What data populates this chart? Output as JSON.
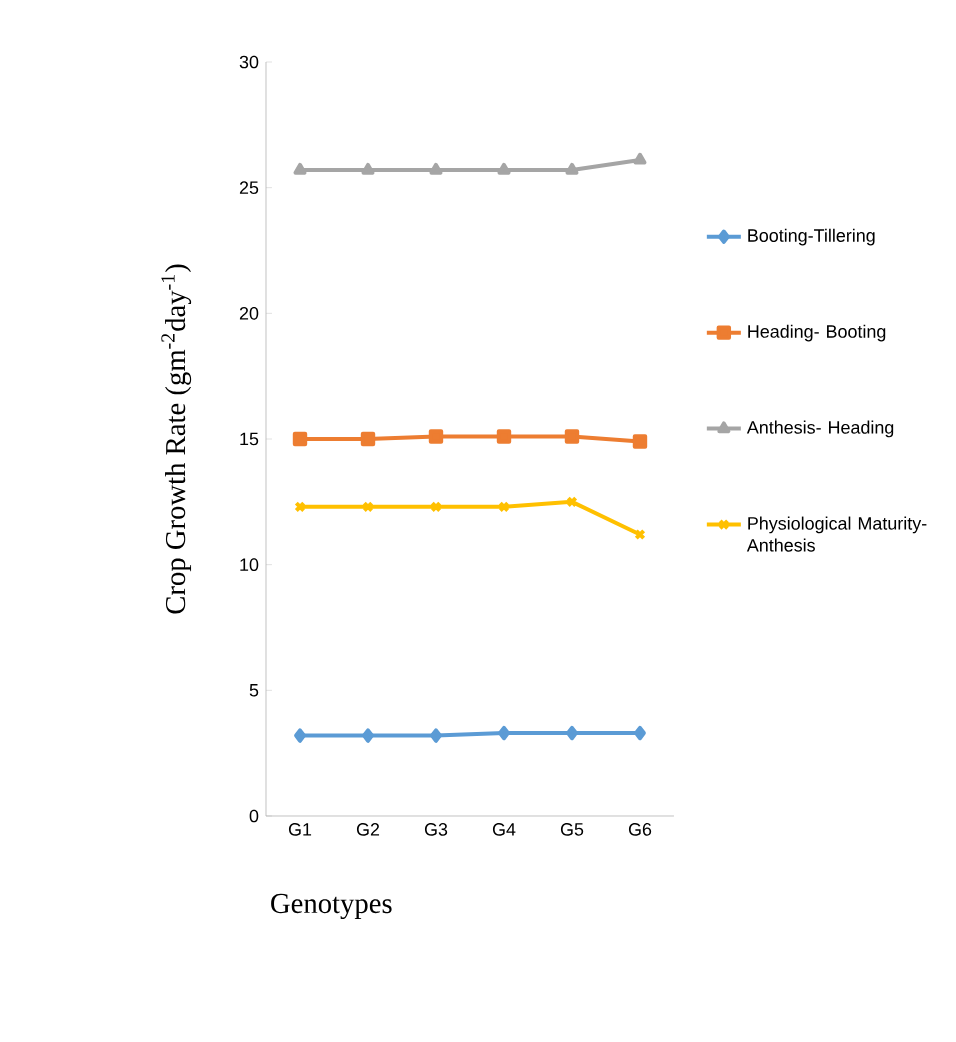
{
  "chart_data": {
    "type": "line",
    "xlabel": "Genotypes",
    "ylabel": "Crop Growth Rate (gm$^{-2}$day$^{-1}$)",
    "categories": [
      "G1",
      "G2",
      "G3",
      "G4",
      "G5",
      "G6"
    ],
    "series": [
      {
        "name": "Booting-Tillering",
        "color": "#5b9bd5",
        "marker": "diamond",
        "values": [
          3.2,
          3.2,
          3.2,
          3.3,
          3.3,
          3.3
        ]
      },
      {
        "name": "Heading- Booting",
        "color": "#ed7d31",
        "marker": "square",
        "values": [
          15.0,
          15.0,
          15.1,
          15.1,
          15.1,
          14.9
        ]
      },
      {
        "name": "Anthesis- Heading",
        "color": "#a5a5a5",
        "marker": "triangle",
        "values": [
          25.7,
          25.7,
          25.7,
          25.7,
          25.7,
          26.1
        ]
      },
      {
        "name": "Physiological Maturity-Anthesis",
        "color": "#ffc000",
        "marker": "cross",
        "values": [
          12.3,
          12.3,
          12.3,
          12.3,
          12.5,
          11.2
        ]
      }
    ],
    "ylim": [
      0,
      30
    ],
    "yticks": [
      0,
      5,
      10,
      15,
      20,
      25,
      30
    ],
    "grid": false,
    "legend": "right"
  }
}
